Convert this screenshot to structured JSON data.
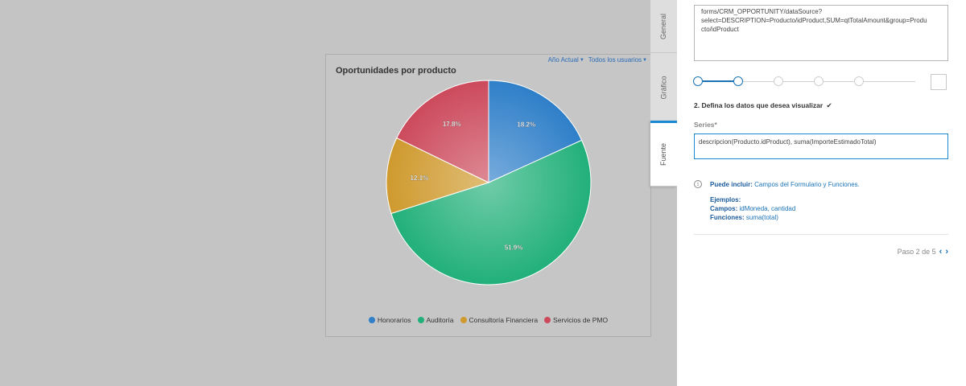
{
  "chart": {
    "title": "Oportunidades por producto",
    "filters": [
      {
        "label": "Año Actual"
      },
      {
        "label": "Todos los usuarios"
      }
    ]
  },
  "chart_data": {
    "type": "pie",
    "title": "Oportunidades por producto",
    "slices": [
      {
        "label": "Honorarios",
        "value": 18.2,
        "display": "18.2%",
        "color": "#2f7fc9"
      },
      {
        "label": "Auditoría",
        "value": 51.9,
        "display": "51.9%",
        "color": "#22b07a"
      },
      {
        "label": "Consultoría Financiera",
        "value": 12.1,
        "display": "12.1%",
        "color": "#cf9a2e"
      },
      {
        "label": "Servicios de PMO",
        "value": 17.8,
        "display": "17.8%",
        "color": "#cc4a5c"
      }
    ],
    "legend_position": "bottom"
  },
  "tabs": [
    {
      "label": "General",
      "active": false
    },
    {
      "label": "Gráfico",
      "active": false
    },
    {
      "label": "Fuente",
      "active": true
    }
  ],
  "panel": {
    "datasource_text": "forms/CRM_OPPORTUNITY/dataSource?\nselect=DESCRIPTION=Producto/idProduct,SUM=qtTotalAmount&group=Produ\ncto/idProduct",
    "steps_total": 5,
    "steps_done": 2,
    "section_title": "2. Defina los datos que desea visualizar",
    "section_check": "✔",
    "series_label": "Series*",
    "series_value": "descripcion(Producto.idProduct), suma(ImporteEstimadoTotal)",
    "info": {
      "icon": "info-icon",
      "puede_label": "Puede incluir:",
      "puede_link": "Campos del Formulario y Funciones.",
      "ejemplos_label": "Ejemplos:",
      "campos_label": "Campos:",
      "campos_value": "idMoneda, cantidad",
      "funciones_label": "Funciones:",
      "funciones_value": "suma(total)"
    },
    "pager_text": "Paso 2 de 5",
    "prev_icon": "chevron-left-icon",
    "next_icon": "chevron-right-icon"
  },
  "colors": {
    "accent": "#1a8ad4",
    "overlay": "#c4c4c4"
  }
}
